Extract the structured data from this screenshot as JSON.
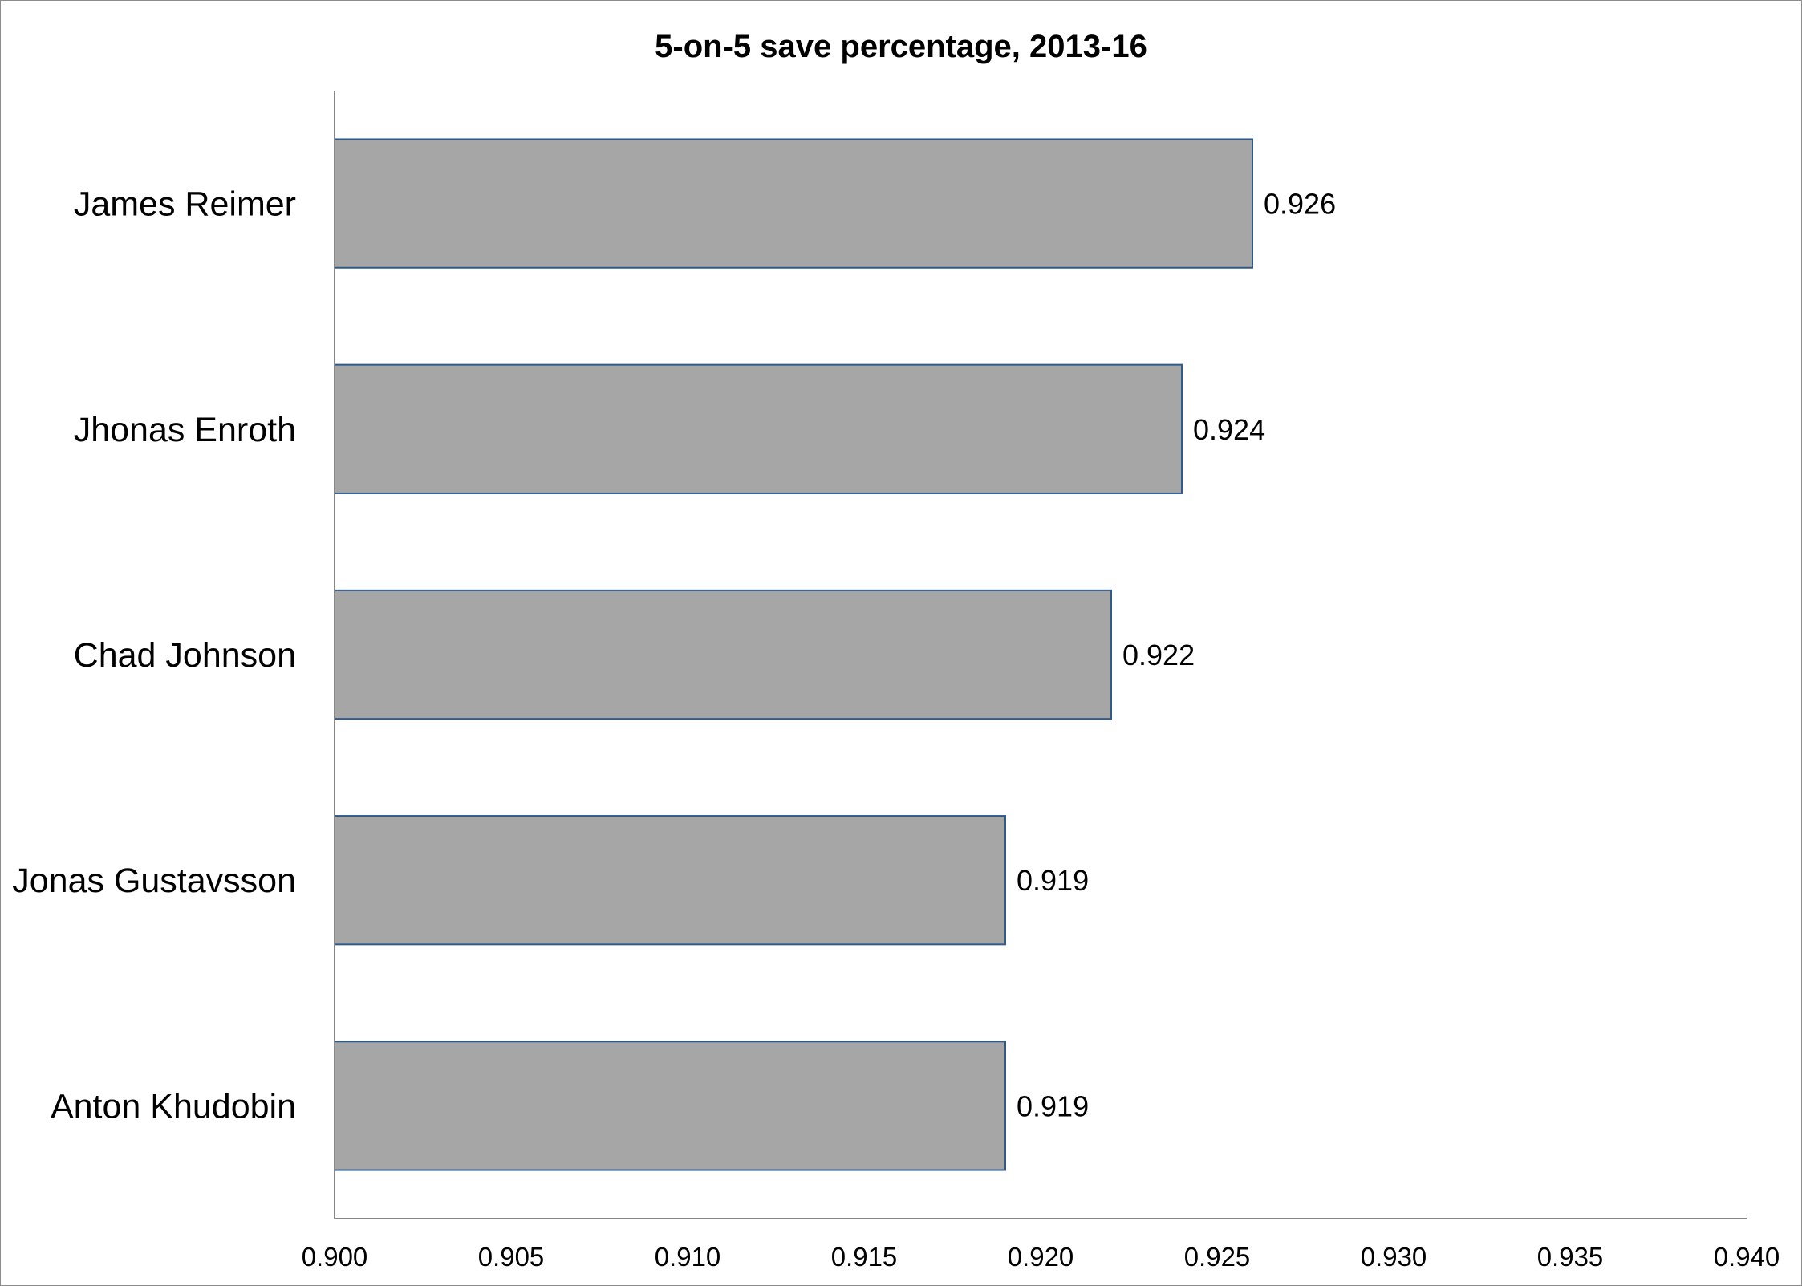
{
  "chart_data": {
    "type": "bar",
    "orientation": "horizontal",
    "title": "5-on-5 save percentage, 2013-16",
    "xlabel": "",
    "ylabel": "",
    "categories": [
      "James Reimer",
      "Jhonas Enroth",
      "Chad Johnson",
      "Jonas Gustavsson",
      "Anton Khudobin"
    ],
    "values": [
      0.926,
      0.924,
      0.922,
      0.919,
      0.919
    ],
    "value_labels": [
      "0.926",
      "0.924",
      "0.922",
      "0.919",
      "0.919"
    ],
    "xlim": [
      0.9,
      0.94
    ],
    "x_ticks": [
      0.9,
      0.905,
      0.91,
      0.915,
      0.92,
      0.925,
      0.93,
      0.935,
      0.94
    ],
    "x_tick_labels": [
      "0.900",
      "0.905",
      "0.910",
      "0.915",
      "0.920",
      "0.925",
      "0.930",
      "0.935",
      "0.940"
    ],
    "grid": false,
    "legend": "none",
    "colors": {
      "bar_fill": "#a6a6a6",
      "bar_border": "#2e5a8c",
      "axis": "#868686"
    }
  }
}
